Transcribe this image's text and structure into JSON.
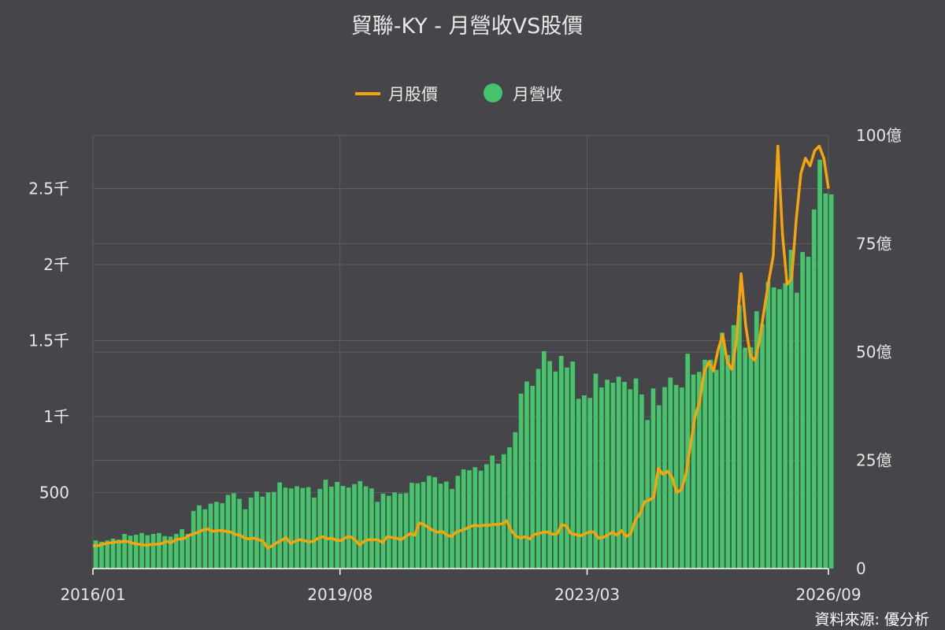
{
  "chart_data": {
    "type": "bar+line",
    "title": "貿聯-KY - 月營收VS股價",
    "source": "資料來源: 優分析",
    "legend": {
      "placement": "top-center",
      "items": [
        {
          "name": "月股價",
          "color": "#f5a50b",
          "marker": "line"
        },
        {
          "name": "月營收",
          "color": "#46c46c",
          "marker": "circle"
        }
      ]
    },
    "x_axis": {
      "start": "2016/01",
      "end": "2026/09",
      "ticks": [
        "2016/01",
        "2019/08",
        "2023/03",
        "2026/09"
      ]
    },
    "y_left": {
      "series": "月股價",
      "min": 0,
      "max": 2850,
      "ticks": [
        {
          "value": 500,
          "label": "500"
        },
        {
          "value": 1000,
          "label": "1千"
        },
        {
          "value": 1500,
          "label": "1.5千"
        },
        {
          "value": 2000,
          "label": "2千"
        },
        {
          "value": 2500,
          "label": "2.5千"
        }
      ]
    },
    "y_right": {
      "series": "月營收",
      "unit": "億",
      "min": 0,
      "max": 100,
      "ticks": [
        {
          "value": 0,
          "label": "0"
        },
        {
          "value": 25,
          "label": "25億"
        },
        {
          "value": 50,
          "label": "50億"
        },
        {
          "value": 75,
          "label": "75億"
        },
        {
          "value": 100,
          "label": "100億"
        }
      ]
    },
    "grid": true,
    "revenue": [
      6.5,
      6.2,
      6.5,
      6.9,
      6.7,
      8.0,
      7.6,
      7.8,
      8.2,
      7.7,
      8.0,
      8.2,
      7.5,
      7.4,
      8.0,
      9.1,
      8.0,
      13.3,
      14.6,
      13.7,
      15.0,
      15.4,
      15.1,
      17.0,
      17.4,
      16.1,
      13.7,
      16.4,
      17.8,
      16.6,
      17.6,
      17.7,
      19.9,
      18.7,
      18.5,
      19.0,
      18.6,
      18.8,
      16.4,
      18.4,
      20.5,
      18.9,
      20.0,
      19.1,
      18.7,
      19.5,
      20.2,
      19.0,
      18.5,
      15.4,
      17.3,
      16.8,
      17.6,
      17.3,
      17.4,
      19.8,
      19.7,
      20.0,
      21.4,
      21.1,
      19.6,
      20.1,
      18.4,
      21.4,
      22.9,
      22.7,
      23.4,
      22.6,
      24.1,
      26.1,
      24.2,
      26.4,
      28.0,
      31.5,
      40.4,
      43.2,
      42.2,
      46.1,
      50.2,
      47.9,
      45.5,
      49.1,
      46.4,
      47.8,
      39.2,
      40.0,
      39.4,
      45.0,
      41.8,
      43.6,
      42.9,
      44.3,
      43.1,
      41.4,
      43.9,
      40.2,
      34.3,
      41.6,
      37.7,
      41.9,
      44.1,
      42.4,
      41.8,
      49.6,
      44.8,
      45.4,
      48.2,
      48.2,
      45.9,
      54.5,
      49.3,
      56.2,
      60.8,
      51.0,
      51.1,
      59.4,
      56.5,
      66.2,
      64.9,
      64.5,
      65.9,
      73.6,
      63.7,
      73.1,
      72.0,
      82.9,
      94.4,
      86.6,
      86.4
    ],
    "price": [
      150,
      150,
      160,
      165,
      170,
      175,
      175,
      180,
      175,
      165,
      160,
      155,
      155,
      160,
      160,
      165,
      180,
      170,
      190,
      195,
      200,
      220,
      230,
      240,
      255,
      260,
      245,
      250,
      250,
      245,
      240,
      225,
      220,
      200,
      195,
      200,
      190,
      180,
      135,
      150,
      170,
      185,
      205,
      165,
      180,
      190,
      185,
      175,
      180,
      200,
      210,
      195,
      200,
      185,
      185,
      205,
      210,
      190,
      155,
      180,
      190,
      190,
      190,
      170,
      210,
      205,
      200,
      190,
      210,
      230,
      220,
      300,
      290,
      270,
      250,
      240,
      245,
      220,
      210,
      240,
      250,
      260,
      275,
      285,
      280,
      285,
      285,
      290,
      290,
      295,
      315,
      250,
      215,
      200,
      210,
      195,
      225,
      230,
      240,
      240,
      225,
      230,
      290,
      280,
      230,
      225,
      215,
      230,
      240,
      240,
      200,
      205,
      220,
      240,
      220,
      250,
      210,
      230,
      320,
      360,
      440,
      450,
      470,
      660,
      620,
      640,
      600,
      500,
      520,
      620,
      820,
      1000,
      1100,
      1300,
      1360,
      1300,
      1440,
      1540,
      1360,
      1310,
      1500,
      1940,
      1600,
      1400,
      1370,
      1500,
      1700,
      1890,
      2060,
      2780,
      2200,
      1870,
      1910,
      2300,
      2600,
      2700,
      2650,
      2750,
      2780,
      2700,
      2500
    ]
  }
}
